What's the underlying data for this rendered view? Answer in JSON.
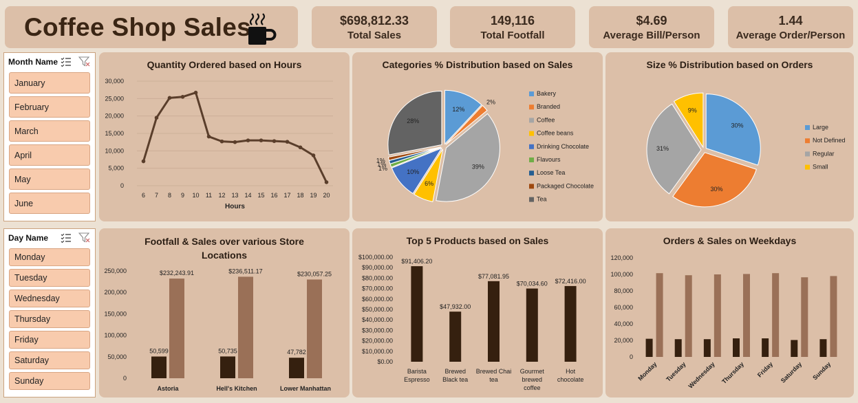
{
  "header": {
    "title": "Coffee Shop Sales",
    "cup_icon": "coffee-cup-icon"
  },
  "kpis": [
    {
      "value": "$698,812.33",
      "label": "Total Sales"
    },
    {
      "value": "149,116",
      "label": "Total Footfall"
    },
    {
      "value": "$4.69",
      "label": "Average Bill/Person"
    },
    {
      "value": "1.44",
      "label": "Average Order/Person"
    }
  ],
  "month_slicer": {
    "header": "Month Name",
    "items": [
      "January",
      "February",
      "March",
      "April",
      "May",
      "June"
    ]
  },
  "day_slicer": {
    "header": "Day Name",
    "items": [
      "Monday",
      "Tuesday",
      "Wednesday",
      "Thursday",
      "Friday",
      "Saturday",
      "Sunday"
    ]
  },
  "colors": {
    "dark_brown": "#35200f",
    "light_brown": "#9a7057",
    "line": "#5a3e2b",
    "panel": "#dcbfa8",
    "slicer_item": "#f8cbad"
  },
  "chart_data": [
    {
      "id": "hours",
      "type": "line",
      "title": "Quantity Ordered based on Hours",
      "xlabel": "Hours",
      "x": [
        6,
        7,
        8,
        9,
        10,
        11,
        12,
        13,
        14,
        15,
        16,
        17,
        18,
        19,
        20
      ],
      "values": [
        7000,
        19500,
        25200,
        25500,
        26700,
        14100,
        12700,
        12500,
        13000,
        13000,
        12800,
        12600,
        11000,
        8700,
        1000
      ],
      "yticks": [
        "30,000",
        "25,000",
        "20,000",
        "15,000",
        "10,000",
        "5,000",
        "0"
      ],
      "ylim": [
        0,
        30000
      ]
    },
    {
      "id": "categories",
      "type": "pie",
      "title": "Categories % Distribution based on Sales",
      "labels": [
        "Bakery",
        "Branded",
        "Coffee",
        "Coffee beans",
        "Drinking Chocolate",
        "Flavours",
        "Loose Tea",
        "Packaged Chocolate",
        "Tea"
      ],
      "values": [
        12,
        2,
        39,
        6,
        10,
        1,
        1,
        1,
        28
      ],
      "value_labels": [
        "12%",
        "2%",
        "39%",
        "6%",
        "10%",
        "1%",
        "1%",
        "1%",
        "28%"
      ],
      "colors": [
        "#5b9bd5",
        "#ed7d31",
        "#a5a5a5",
        "#ffc000",
        "#4472c4",
        "#70ad47",
        "#255e91",
        "#9e480e",
        "#636363"
      ],
      "legend": "right"
    },
    {
      "id": "sizes",
      "type": "pie",
      "title": "Size % Distribution based on Orders",
      "labels": [
        "Large",
        "Not Defined",
        "Regular",
        "Small"
      ],
      "values": [
        30,
        30,
        31,
        9
      ],
      "value_labels": [
        "30%",
        "30%",
        "31%",
        "9%"
      ],
      "colors": [
        "#5b9bd5",
        "#ed7d31",
        "#a5a5a5",
        "#ffc000"
      ],
      "legend": "right"
    },
    {
      "id": "stores",
      "type": "bar",
      "title": "Footfall & Sales over various Store Locations",
      "categories": [
        "Astoria",
        "Hell's Kitchen",
        "Lower Manhattan"
      ],
      "series": [
        {
          "values": [
            50599,
            50735,
            47782
          ],
          "labels": [
            "50,599",
            "50,735",
            "47,782"
          ]
        },
        {
          "values": [
            232243.91,
            236511.17,
            230057.25
          ],
          "labels": [
            "$232,243.91",
            "$236,511.17",
            "$230,057.25"
          ]
        }
      ],
      "yticks": [
        "250,000",
        "200,000",
        "150,000",
        "100,000",
        "50,000",
        "0"
      ],
      "ylim": [
        0,
        250000
      ]
    },
    {
      "id": "products",
      "type": "bar",
      "title": "Top 5 Products based on Sales",
      "categories": [
        "Barista Espresso",
        "Brewed Black tea",
        "Brewed Chai tea",
        "Gourmet brewed coffee",
        "Hot chocolate"
      ],
      "category_lines": [
        [
          "Barista",
          "Espresso"
        ],
        [
          "Brewed",
          "Black tea"
        ],
        [
          "Brewed Chai",
          "tea"
        ],
        [
          "Gourmet",
          "brewed",
          "coffee"
        ],
        [
          "Hot",
          "chocolate"
        ]
      ],
      "values": [
        91406.2,
        47932.0,
        77081.95,
        70034.6,
        72416.0
      ],
      "value_labels": [
        "$91,406.20",
        "$47,932.00",
        "$77,081.95",
        "$70,034.60",
        "$72,416.00"
      ],
      "yticks": [
        "$100,000.00",
        "$90,000.00",
        "$80,000.00",
        "$70,000.00",
        "$60,000.00",
        "$50,000.00",
        "$40,000.00",
        "$30,000.00",
        "$20,000.00",
        "$10,000.00",
        "$0.00"
      ],
      "ylim": [
        0,
        100000
      ]
    },
    {
      "id": "weekdays",
      "type": "bar",
      "title": "Orders & Sales on Weekdays",
      "categories": [
        "Monday",
        "Tuesday",
        "Wednesday",
        "Thursday",
        "Friday",
        "Saturday",
        "Sunday"
      ],
      "series": [
        {
          "values": [
            22000,
            21500,
            21500,
            22500,
            22500,
            20500,
            21500
          ]
        },
        {
          "values": [
            101500,
            99000,
            100000,
            100500,
            101500,
            96500,
            98000
          ]
        }
      ],
      "yticks": [
        "120,000",
        "100,000",
        "80,000",
        "60,000",
        "40,000",
        "20,000",
        "0"
      ],
      "ylim": [
        0,
        120000
      ]
    }
  ]
}
